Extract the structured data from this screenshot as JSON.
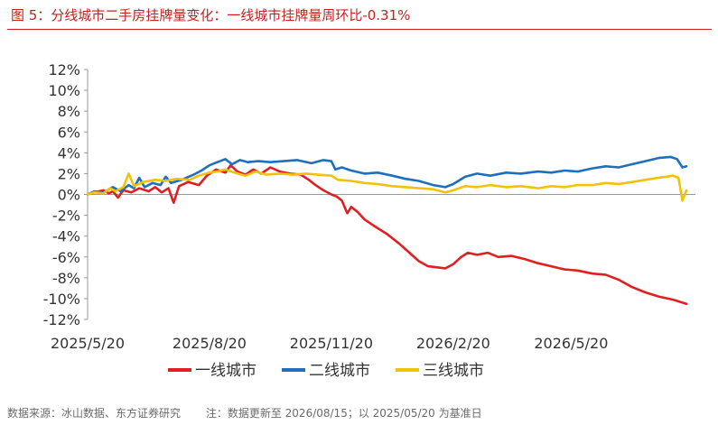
{
  "title": "图 5：分线城市二手房挂牌量变化：一线城市挂牌量周环比-0.31%",
  "source": {
    "label": "数据来源：冰山数据、东方证券研究",
    "note": "注：数据更新至 2026/08/15；以 2025/05/20 为基准日"
  },
  "colors": {
    "title": "#c8201e"
  },
  "chart_data": {
    "type": "line",
    "title": "",
    "xlabel": "",
    "ylabel": "",
    "ylim": [
      -12,
      12
    ],
    "y_ticks": [
      12,
      10,
      8,
      6,
      4,
      2,
      0,
      -2,
      -4,
      -6,
      -8,
      -10,
      -12
    ],
    "y_tick_labels": [
      "12%",
      "10%",
      "8%",
      "6%",
      "4%",
      "2%",
      "0%",
      "-2%",
      "-4%",
      "-6%",
      "-8%",
      "-10%",
      "-12%"
    ],
    "x_range": [
      "2025/05/20",
      "2026/08/15"
    ],
    "x_ticks": [
      "2025/05/20",
      "2025/08/20",
      "2025/11/20",
      "2026/02/20",
      "2026/05/20"
    ],
    "x_tick_labels": [
      "2025/5/20",
      "2025/8/20",
      "2025/11/20",
      "2026/2/20",
      "2026/5/20"
    ],
    "legend_position": "bottom",
    "grid": false,
    "series": [
      {
        "name": "一线城市",
        "color": "#e02020",
        "points": [
          [
            "2025/05/20",
            0
          ],
          [
            "2025/05/25",
            0.2
          ],
          [
            "2025/06/01",
            0.4
          ],
          [
            "2025/06/05",
            0.1
          ],
          [
            "2025/06/08",
            0.3
          ],
          [
            "2025/06/12",
            -0.3
          ],
          [
            "2025/06/16",
            0.4
          ],
          [
            "2025/06/22",
            0.2
          ],
          [
            "2025/06/28",
            0.6
          ],
          [
            "2025/07/05",
            0.3
          ],
          [
            "2025/07/10",
            0.7
          ],
          [
            "2025/07/15",
            0.2
          ],
          [
            "2025/07/20",
            0.6
          ],
          [
            "2025/07/24",
            -0.8
          ],
          [
            "2025/07/28",
            0.8
          ],
          [
            "2025/08/04",
            1.2
          ],
          [
            "2025/08/12",
            0.9
          ],
          [
            "2025/08/18",
            1.8
          ],
          [
            "2025/08/25",
            2.4
          ],
          [
            "2025/09/01",
            2.1
          ],
          [
            "2025/09/05",
            2.8
          ],
          [
            "2025/09/10",
            2.2
          ],
          [
            "2025/09/16",
            1.9
          ],
          [
            "2025/09/22",
            2.4
          ],
          [
            "2025/09/28",
            2.0
          ],
          [
            "2025/10/05",
            2.6
          ],
          [
            "2025/10/12",
            2.2
          ],
          [
            "2025/10/20",
            2.0
          ],
          [
            "2025/10/28",
            1.9
          ],
          [
            "2025/11/03",
            1.4
          ],
          [
            "2025/11/08",
            0.9
          ],
          [
            "2025/11/14",
            0.4
          ],
          [
            "2025/11/20",
            0.0
          ],
          [
            "2025/11/24",
            -0.2
          ],
          [
            "2025/11/28",
            -0.6
          ],
          [
            "2025/12/02",
            -1.8
          ],
          [
            "2025/12/05",
            -1.2
          ],
          [
            "2025/12/10",
            -1.7
          ],
          [
            "2025/12/15",
            -2.4
          ],
          [
            "2025/12/22",
            -3.0
          ],
          [
            "2026/01/01",
            -3.8
          ],
          [
            "2026/01/10",
            -4.7
          ],
          [
            "2026/01/18",
            -5.6
          ],
          [
            "2026/01/25",
            -6.4
          ],
          [
            "2026/02/01",
            -6.9
          ],
          [
            "2026/02/08",
            -7.0
          ],
          [
            "2026/02/14",
            -7.1
          ],
          [
            "2026/02/20",
            -6.7
          ],
          [
            "2026/02/26",
            -6.0
          ],
          [
            "2026/03/03",
            -5.6
          ],
          [
            "2026/03/10",
            -5.8
          ],
          [
            "2026/03/18",
            -5.6
          ],
          [
            "2026/03/26",
            -6.0
          ],
          [
            "2026/04/05",
            -5.9
          ],
          [
            "2026/04/15",
            -6.2
          ],
          [
            "2026/04/25",
            -6.6
          ],
          [
            "2026/05/05",
            -6.9
          ],
          [
            "2026/05/15",
            -7.2
          ],
          [
            "2026/05/25",
            -7.3
          ],
          [
            "2026/06/05",
            -7.6
          ],
          [
            "2026/06/15",
            -7.7
          ],
          [
            "2026/06/25",
            -8.2
          ],
          [
            "2026/07/05",
            -8.9
          ],
          [
            "2026/07/15",
            -9.4
          ],
          [
            "2026/07/25",
            -9.8
          ],
          [
            "2026/08/05",
            -10.1
          ],
          [
            "2026/08/15",
            -10.5
          ]
        ]
      },
      {
        "name": "二线城市",
        "color": "#1f6fbf",
        "points": [
          [
            "2025/05/20",
            0
          ],
          [
            "2025/05/25",
            0.3
          ],
          [
            "2025/06/01",
            0.2
          ],
          [
            "2025/06/08",
            0.7
          ],
          [
            "2025/06/14",
            0.3
          ],
          [
            "2025/06/20",
            0.9
          ],
          [
            "2025/06/24",
            0.6
          ],
          [
            "2025/06/28",
            1.6
          ],
          [
            "2025/07/02",
            0.7
          ],
          [
            "2025/07/08",
            1.1
          ],
          [
            "2025/07/14",
            0.9
          ],
          [
            "2025/07/18",
            1.7
          ],
          [
            "2025/07/22",
            1.1
          ],
          [
            "2025/07/30",
            1.4
          ],
          [
            "2025/08/08",
            1.9
          ],
          [
            "2025/08/14",
            2.3
          ],
          [
            "2025/08/20",
            2.8
          ],
          [
            "2025/08/26",
            3.1
          ],
          [
            "2025/09/01",
            3.4
          ],
          [
            "2025/09/06",
            2.9
          ],
          [
            "2025/09/12",
            3.3
          ],
          [
            "2025/09/18",
            3.1
          ],
          [
            "2025/09/26",
            3.2
          ],
          [
            "2025/10/05",
            3.1
          ],
          [
            "2025/10/15",
            3.2
          ],
          [
            "2025/10/25",
            3.3
          ],
          [
            "2025/11/05",
            3.0
          ],
          [
            "2025/11/14",
            3.3
          ],
          [
            "2025/11/20",
            3.2
          ],
          [
            "2025/11/23",
            2.4
          ],
          [
            "2025/11/28",
            2.6
          ],
          [
            "2025/12/05",
            2.3
          ],
          [
            "2025/12/15",
            2.0
          ],
          [
            "2025/12/25",
            2.1
          ],
          [
            "2026/01/05",
            1.8
          ],
          [
            "2026/01/15",
            1.5
          ],
          [
            "2026/01/25",
            1.3
          ],
          [
            "2026/02/05",
            0.9
          ],
          [
            "2026/02/14",
            0.7
          ],
          [
            "2026/02/20",
            1.0
          ],
          [
            "2026/03/01",
            1.7
          ],
          [
            "2026/03/10",
            2.0
          ],
          [
            "2026/03/20",
            1.8
          ],
          [
            "2026/04/01",
            2.1
          ],
          [
            "2026/04/12",
            2.0
          ],
          [
            "2026/04/25",
            2.2
          ],
          [
            "2026/05/05",
            2.1
          ],
          [
            "2026/05/15",
            2.3
          ],
          [
            "2026/05/25",
            2.2
          ],
          [
            "2026/06/05",
            2.5
          ],
          [
            "2026/06/15",
            2.7
          ],
          [
            "2026/06/25",
            2.6
          ],
          [
            "2026/07/05",
            2.9
          ],
          [
            "2026/07/15",
            3.2
          ],
          [
            "2026/07/25",
            3.5
          ],
          [
            "2026/08/03",
            3.6
          ],
          [
            "2026/08/08",
            3.4
          ],
          [
            "2026/08/12",
            2.6
          ],
          [
            "2026/08/15",
            2.7
          ]
        ]
      },
      {
        "name": "三线城市",
        "color": "#f2c10a",
        "points": [
          [
            "2025/05/20",
            0
          ],
          [
            "2025/05/25",
            0.2
          ],
          [
            "2025/06/01",
            0.1
          ],
          [
            "2025/06/06",
            0.6
          ],
          [
            "2025/06/10",
            0.3
          ],
          [
            "2025/06/16",
            0.7
          ],
          [
            "2025/06/20",
            2.0
          ],
          [
            "2025/06/24",
            0.8
          ],
          [
            "2025/07/01",
            1.2
          ],
          [
            "2025/07/10",
            1.4
          ],
          [
            "2025/07/18",
            1.3
          ],
          [
            "2025/07/26",
            1.5
          ],
          [
            "2025/08/05",
            1.4
          ],
          [
            "2025/08/12",
            1.8
          ],
          [
            "2025/08/20",
            2.1
          ],
          [
            "2025/08/26",
            2.2
          ],
          [
            "2025/09/01",
            2.4
          ],
          [
            "2025/09/08",
            2.1
          ],
          [
            "2025/09/16",
            1.8
          ],
          [
            "2025/09/24",
            2.2
          ],
          [
            "2025/10/02",
            1.9
          ],
          [
            "2025/10/12",
            2.0
          ],
          [
            "2025/10/22",
            1.9
          ],
          [
            "2025/11/01",
            2.0
          ],
          [
            "2025/11/10",
            1.9
          ],
          [
            "2025/11/20",
            1.8
          ],
          [
            "2025/11/25",
            1.4
          ],
          [
            "2025/12/05",
            1.3
          ],
          [
            "2025/12/15",
            1.1
          ],
          [
            "2025/12/25",
            1.0
          ],
          [
            "2026/01/05",
            0.8
          ],
          [
            "2026/01/15",
            0.7
          ],
          [
            "2026/01/25",
            0.6
          ],
          [
            "2026/02/05",
            0.5
          ],
          [
            "2026/02/14",
            0.2
          ],
          [
            "2026/02/20",
            0.4
          ],
          [
            "2026/03/01",
            0.8
          ],
          [
            "2026/03/10",
            0.7
          ],
          [
            "2026/03/20",
            0.9
          ],
          [
            "2026/04/01",
            0.7
          ],
          [
            "2026/04/12",
            0.8
          ],
          [
            "2026/04/25",
            0.6
          ],
          [
            "2026/05/05",
            0.8
          ],
          [
            "2026/05/15",
            0.7
          ],
          [
            "2026/05/25",
            0.9
          ],
          [
            "2026/06/05",
            0.9
          ],
          [
            "2026/06/15",
            1.1
          ],
          [
            "2026/06/25",
            1.0
          ],
          [
            "2026/07/05",
            1.2
          ],
          [
            "2026/07/15",
            1.4
          ],
          [
            "2026/07/25",
            1.6
          ],
          [
            "2026/08/05",
            1.8
          ],
          [
            "2026/08/09",
            1.6
          ],
          [
            "2026/08/12",
            -0.6
          ],
          [
            "2026/08/15",
            0.4
          ]
        ]
      }
    ]
  }
}
